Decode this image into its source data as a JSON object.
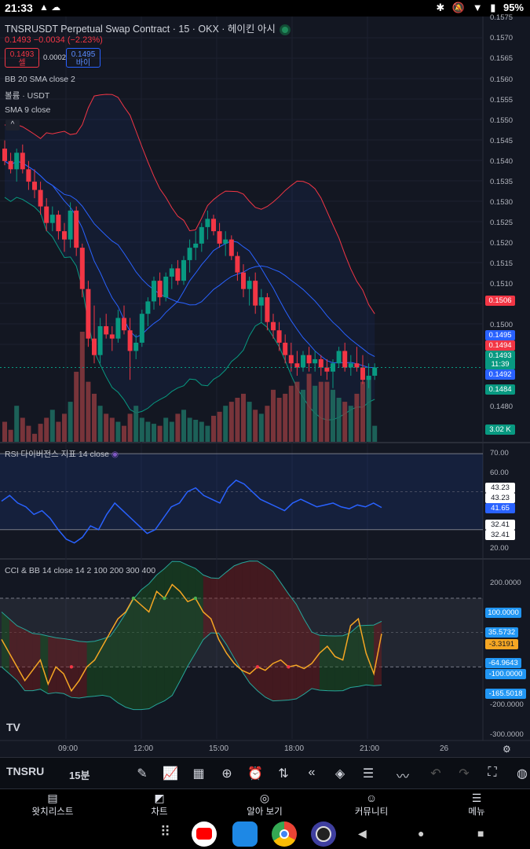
{
  "status_bar": {
    "time": "21:33",
    "left_icons": "▲ ☁",
    "bluetooth": "✱",
    "mute": "🔕",
    "wifi": "▼",
    "battery_icon": "▮",
    "battery": "95%"
  },
  "chart": {
    "title": "TNSRUSDT Perpetual Swap Contract · 15 · OKX · 헤이킨 아시",
    "ohlc": "0.1493  −0.0034 (−2.23%)",
    "sell_price": "0.1493",
    "sell_label": "셀",
    "spread": "0.0002",
    "buy_price": "0.1495",
    "buy_label": "바이",
    "indicators": [
      "BB 20 SMA close 2",
      "볼륨 · USDT",
      "SMA 9 close"
    ],
    "collapse_icon": "^",
    "rsi_label": "RSI 다이버전스 지표 14 close",
    "cci_label": "CCI & BB 14 close 14 2 100 200 300 400",
    "price_axis": [
      "0.1575",
      "0.1570",
      "0.1565",
      "0.1560",
      "0.1555",
      "0.1550",
      "0.1545",
      "0.1540",
      "0.1535",
      "0.1530",
      "0.1525",
      "0.1520",
      "0.1515",
      "0.1510",
      "0.1505",
      "0.1500",
      "0.1480"
    ],
    "price_tags": [
      {
        "text": "0.1506",
        "color": "#f23645"
      },
      {
        "text": "0.1495",
        "color": "#2962ff"
      },
      {
        "text": "0.1494",
        "color": "#f23645"
      },
      {
        "text": "0.1493",
        "color": "#089981"
      },
      {
        "text": "11:39",
        "color": "#089981"
      },
      {
        "text": "0.1492",
        "color": "#2962ff"
      },
      {
        "text": "0.1484",
        "color": "#089981"
      },
      {
        "text": "3.02 K",
        "color": "#089981"
      }
    ],
    "rsi_axis": [
      "70.00",
      "60.00",
      "20.00"
    ],
    "rsi_tags": [
      "43.23",
      "43.23",
      "41.65",
      "32.41",
      "32.41"
    ],
    "cci_axis": [
      "200.0000",
      "-200.0000",
      "-300.0000"
    ],
    "cci_tags": [
      {
        "text": "100.0000",
        "color": "#2196f3"
      },
      {
        "text": "35.5732",
        "color": "#2196f3"
      },
      {
        "text": "-3.3191",
        "color": "#f5a623"
      },
      {
        "text": "-64.9643",
        "color": "#2196f3"
      },
      {
        "text": "-100.0000",
        "color": "#2196f3"
      },
      {
        "text": "-165.5018",
        "color": "#2196f3"
      }
    ],
    "time_axis": [
      "09:00",
      "12:00",
      "15:00",
      "18:00",
      "21:00",
      "26"
    ],
    "tv_logo": "TV"
  },
  "toolbar": {
    "symbol": "TNSRU",
    "timeframe": "15분",
    "icons": [
      "pen-icon",
      "chart-type-icon",
      "grid-icon",
      "plus-icon",
      "alarm-icon",
      "replay-icon",
      "rewind-icon",
      "layers-icon",
      "settings-icon",
      "trend-icon",
      "undo-icon",
      "redo-icon",
      "fullscreen-icon",
      "globe-icon"
    ]
  },
  "nav": [
    {
      "label": "왓치리스트",
      "icon": "▤"
    },
    {
      "label": "차트",
      "icon": "◩"
    },
    {
      "label": "알아 보기",
      "icon": "◎"
    },
    {
      "label": "커뮤니티",
      "icon": "☺"
    },
    {
      "label": "메뉴",
      "icon": "☰"
    }
  ],
  "chart_data": {
    "type": "candlestick",
    "symbol": "TNSRUSDT",
    "timeframe": "15",
    "candles": [
      {
        "o": 0.1546,
        "h": 0.1548,
        "l": 0.1542,
        "c": 0.1543
      },
      {
        "o": 0.1543,
        "h": 0.1545,
        "l": 0.154,
        "c": 0.1541
      },
      {
        "o": 0.1541,
        "h": 0.1546,
        "l": 0.1538,
        "c": 0.1545
      },
      {
        "o": 0.1545,
        "h": 0.1547,
        "l": 0.154,
        "c": 0.1541
      },
      {
        "o": 0.1541,
        "h": 0.1543,
        "l": 0.1536,
        "c": 0.1538
      },
      {
        "o": 0.1538,
        "h": 0.1541,
        "l": 0.1534,
        "c": 0.1536
      },
      {
        "o": 0.1536,
        "h": 0.1538,
        "l": 0.153,
        "c": 0.1532
      },
      {
        "o": 0.1532,
        "h": 0.1534,
        "l": 0.1526,
        "c": 0.1528
      },
      {
        "o": 0.1528,
        "h": 0.1532,
        "l": 0.1526,
        "c": 0.153
      },
      {
        "o": 0.153,
        "h": 0.1531,
        "l": 0.1524,
        "c": 0.1526
      },
      {
        "o": 0.1526,
        "h": 0.1528,
        "l": 0.1521,
        "c": 0.1524
      },
      {
        "o": 0.1524,
        "h": 0.1533,
        "l": 0.1522,
        "c": 0.1531
      },
      {
        "o": 0.1531,
        "h": 0.1532,
        "l": 0.152,
        "c": 0.1522
      },
      {
        "o": 0.1522,
        "h": 0.1523,
        "l": 0.151,
        "c": 0.1512
      },
      {
        "o": 0.1512,
        "h": 0.1514,
        "l": 0.1498,
        "c": 0.15
      },
      {
        "o": 0.15,
        "h": 0.1508,
        "l": 0.1494,
        "c": 0.1496
      },
      {
        "o": 0.1496,
        "h": 0.1505,
        "l": 0.1494,
        "c": 0.1503
      },
      {
        "o": 0.1503,
        "h": 0.1506,
        "l": 0.15,
        "c": 0.1501
      },
      {
        "o": 0.1501,
        "h": 0.1503,
        "l": 0.1497,
        "c": 0.15
      },
      {
        "o": 0.15,
        "h": 0.1507,
        "l": 0.1499,
        "c": 0.1505
      },
      {
        "o": 0.1505,
        "h": 0.1508,
        "l": 0.1501,
        "c": 0.1502
      },
      {
        "o": 0.1502,
        "h": 0.1505,
        "l": 0.149,
        "c": 0.1497
      },
      {
        "o": 0.1497,
        "h": 0.1501,
        "l": 0.1495,
        "c": 0.1499
      },
      {
        "o": 0.1499,
        "h": 0.1507,
        "l": 0.1498,
        "c": 0.1506
      },
      {
        "o": 0.1506,
        "h": 0.151,
        "l": 0.1503,
        "c": 0.1509
      },
      {
        "o": 0.1509,
        "h": 0.1515,
        "l": 0.1507,
        "c": 0.1514
      },
      {
        "o": 0.1514,
        "h": 0.1516,
        "l": 0.1508,
        "c": 0.151
      },
      {
        "o": 0.151,
        "h": 0.1516,
        "l": 0.1509,
        "c": 0.1515
      },
      {
        "o": 0.1515,
        "h": 0.1518,
        "l": 0.1512,
        "c": 0.1517
      },
      {
        "o": 0.1517,
        "h": 0.1519,
        "l": 0.1513,
        "c": 0.1514
      },
      {
        "o": 0.1514,
        "h": 0.152,
        "l": 0.1513,
        "c": 0.1519
      },
      {
        "o": 0.1519,
        "h": 0.1524,
        "l": 0.1516,
        "c": 0.1522
      },
      {
        "o": 0.1522,
        "h": 0.1526,
        "l": 0.1519,
        "c": 0.1523
      },
      {
        "o": 0.1523,
        "h": 0.1528,
        "l": 0.1521,
        "c": 0.1527
      },
      {
        "o": 0.1527,
        "h": 0.1531,
        "l": 0.1524,
        "c": 0.1529
      },
      {
        "o": 0.1529,
        "h": 0.153,
        "l": 0.1525,
        "c": 0.1526
      },
      {
        "o": 0.1526,
        "h": 0.1528,
        "l": 0.1522,
        "c": 0.1523
      },
      {
        "o": 0.1523,
        "h": 0.1526,
        "l": 0.152,
        "c": 0.1524
      },
      {
        "o": 0.1524,
        "h": 0.1525,
        "l": 0.1519,
        "c": 0.152
      },
      {
        "o": 0.152,
        "h": 0.1521,
        "l": 0.1514,
        "c": 0.1516
      },
      {
        "o": 0.1516,
        "h": 0.1518,
        "l": 0.151,
        "c": 0.1512
      },
      {
        "o": 0.1512,
        "h": 0.1515,
        "l": 0.1508,
        "c": 0.1514
      },
      {
        "o": 0.1514,
        "h": 0.1516,
        "l": 0.1506,
        "c": 0.1508
      },
      {
        "o": 0.1508,
        "h": 0.1512,
        "l": 0.1504,
        "c": 0.151
      },
      {
        "o": 0.151,
        "h": 0.1511,
        "l": 0.1502,
        "c": 0.1504
      },
      {
        "o": 0.1504,
        "h": 0.1506,
        "l": 0.15,
        "c": 0.1502
      },
      {
        "o": 0.1502,
        "h": 0.1504,
        "l": 0.1497,
        "c": 0.1499
      },
      {
        "o": 0.1499,
        "h": 0.1501,
        "l": 0.1494,
        "c": 0.1496
      },
      {
        "o": 0.1496,
        "h": 0.1499,
        "l": 0.1492,
        "c": 0.1494
      },
      {
        "o": 0.1494,
        "h": 0.1497,
        "l": 0.1491,
        "c": 0.1493
      },
      {
        "o": 0.1493,
        "h": 0.1497,
        "l": 0.1492,
        "c": 0.1496
      },
      {
        "o": 0.1496,
        "h": 0.1498,
        "l": 0.1492,
        "c": 0.1494
      },
      {
        "o": 0.1494,
        "h": 0.1497,
        "l": 0.1492,
        "c": 0.1495
      },
      {
        "o": 0.1495,
        "h": 0.1496,
        "l": 0.1491,
        "c": 0.1493
      },
      {
        "o": 0.1493,
        "h": 0.1495,
        "l": 0.149,
        "c": 0.1492
      },
      {
        "o": 0.1492,
        "h": 0.1495,
        "l": 0.1488,
        "c": 0.1494
      },
      {
        "o": 0.1494,
        "h": 0.1498,
        "l": 0.1493,
        "c": 0.1497
      },
      {
        "o": 0.1497,
        "h": 0.1499,
        "l": 0.1492,
        "c": 0.1493
      },
      {
        "o": 0.1493,
        "h": 0.1496,
        "l": 0.1491,
        "c": 0.1494
      },
      {
        "o": 0.1494,
        "h": 0.1498,
        "l": 0.1492,
        "c": 0.1493
      },
      {
        "o": 0.1493,
        "h": 0.1496,
        "l": 0.1489,
        "c": 0.149
      },
      {
        "o": 0.149,
        "h": 0.1494,
        "l": 0.1488,
        "c": 0.1491
      },
      {
        "o": 0.1491,
        "h": 0.1494,
        "l": 0.149,
        "c": 0.1493
      }
    ],
    "volume": [
      10,
      6,
      18,
      12,
      8,
      4,
      9,
      12,
      16,
      10,
      14,
      20,
      35,
      55,
      30,
      24,
      18,
      14,
      12,
      10,
      8,
      14,
      18,
      12,
      10,
      9,
      8,
      12,
      10,
      14,
      16,
      12,
      11,
      10,
      8,
      13,
      15,
      18,
      20,
      22,
      24,
      20,
      16,
      14,
      18,
      26,
      22,
      24,
      28,
      30,
      26,
      34,
      28,
      30,
      30,
      26,
      22,
      20,
      18,
      24,
      30,
      32,
      8
    ],
    "rsi": [
      45,
      48,
      44,
      42,
      38,
      40,
      36,
      30,
      25,
      23,
      26,
      32,
      30,
      38,
      44,
      40,
      36,
      32,
      28,
      30,
      36,
      42,
      44,
      50,
      52,
      48,
      46,
      44,
      52,
      56,
      54,
      50,
      46,
      44,
      42,
      40,
      44,
      46,
      44,
      42,
      43,
      44,
      42,
      41,
      43,
      42,
      44,
      41.65
    ],
    "cci": [
      -20,
      -60,
      -100,
      -140,
      -110,
      -80,
      -150,
      -100,
      -120,
      -170,
      -140,
      -100,
      -80,
      -40,
      0,
      40,
      60,
      100,
      80,
      60,
      120,
      100,
      140,
      120,
      90,
      100,
      60,
      40,
      -20,
      -60,
      -90,
      -110,
      -120,
      -100,
      -110,
      -90,
      -80,
      -100,
      -95,
      -105,
      -90,
      -60,
      -40,
      -70,
      -80,
      20,
      40,
      -60,
      -120,
      -3.3191
    ],
    "price_range": [
      0.1475,
      0.1578
    ],
    "rsi_range": [
      15,
      75
    ],
    "cci_range": [
      -310,
      210
    ]
  }
}
